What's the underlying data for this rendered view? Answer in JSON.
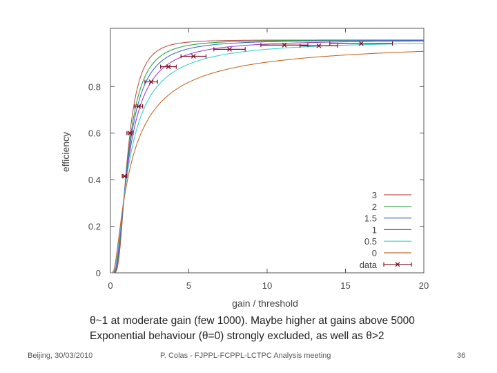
{
  "chart_data": {
    "type": "line",
    "title": "",
    "xlabel": "gain / threshold",
    "ylabel": "efficiency",
    "xlim": [
      0,
      20
    ],
    "ylim": [
      0,
      1.05
    ],
    "x_ticks": [
      "0",
      "5",
      "10",
      "15",
      "20"
    ],
    "y_ticks": [
      "0",
      "0.2",
      "0.4",
      "0.6",
      "0.8"
    ],
    "legend_position": "bottom-right",
    "series": [
      {
        "name": "3",
        "theta": 3,
        "color": "#c0504d"
      },
      {
        "name": "2",
        "theta": 2,
        "color": "#2ea043"
      },
      {
        "name": "1.5",
        "theta": 1.5,
        "color": "#3a6fc4"
      },
      {
        "name": "1",
        "theta": 1,
        "color": "#a040c8"
      },
      {
        "name": "0.5",
        "theta": 0.5,
        "color": "#36cfd8"
      },
      {
        "name": "0",
        "theta": 0,
        "color": "#c46a28"
      }
    ],
    "data_series": {
      "name": "data",
      "color": "#7a1020",
      "points": [
        {
          "x": 0.9,
          "y": 0.415,
          "xerr": 0.15
        },
        {
          "x": 1.25,
          "y": 0.6,
          "xerr": 0.2
        },
        {
          "x": 1.8,
          "y": 0.715,
          "xerr": 0.25
        },
        {
          "x": 2.6,
          "y": 0.82,
          "xerr": 0.4
        },
        {
          "x": 3.7,
          "y": 0.885,
          "xerr": 0.5
        },
        {
          "x": 5.3,
          "y": 0.93,
          "xerr": 0.8
        },
        {
          "x": 7.6,
          "y": 0.96,
          "xerr": 1.0
        },
        {
          "x": 11.1,
          "y": 0.978,
          "xerr": 1.5
        },
        {
          "x": 13.3,
          "y": 0.975,
          "xerr": 1.2
        },
        {
          "x": 16.0,
          "y": 0.985,
          "xerr": 2.0
        }
      ]
    }
  },
  "captions": {
    "line1": "θ~1 at moderate gain (few 1000). Maybe higher at gains above 5000",
    "line2": "Exponential behaviour (θ=0) strongly excluded, as well as θ>2"
  },
  "footer": {
    "left": "Beijing, 30/03/2010",
    "center": "P. Colas - FJPPL-FCPPL-LCTPC Analysis meeting",
    "page_number": "36"
  }
}
